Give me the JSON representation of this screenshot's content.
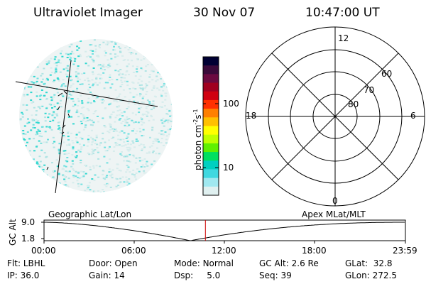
{
  "header": {
    "title": "Ultraviolet Imager",
    "date": "30 Nov 07",
    "time": "10:47:00 UT"
  },
  "colorbar": {
    "label": "photon cm",
    "label_exp1": "-2",
    "label_mid": "s",
    "label_exp2": "-1",
    "ticks": [
      "100",
      "10"
    ],
    "colors": [
      "#000033",
      "#3a0a3a",
      "#6b0a40",
      "#a00020",
      "#d00010",
      "#ff3000",
      "#ff8000",
      "#ffc000",
      "#ffff00",
      "#c0ff00",
      "#60f000",
      "#00e060",
      "#00d0c0",
      "#40d8e0",
      "#a0e8f0",
      "#e0f0f0"
    ]
  },
  "polar_plot": {
    "mlt_labels": {
      "top": "12",
      "bottom": "0",
      "left": "18",
      "right": "6"
    },
    "mlat_labels": [
      "60",
      "70",
      "80"
    ]
  },
  "timeline": {
    "left_label": "Geographic Lat/Lon",
    "right_label": "Apex  MLat/MLT",
    "axis_title": "GC Alt",
    "y_ticks": [
      "9.0",
      "1.8"
    ],
    "x_ticks": [
      "00:00",
      "06:00",
      "12:00",
      "18:00",
      "23:59"
    ],
    "current_time_fraction": 0.4465
  },
  "status": {
    "flt_label": "Flt:",
    "flt_value": "LBHL",
    "ip_label": "IP:",
    "ip_value": "36.0",
    "door_label": "Door:",
    "door_value": "Open",
    "gain_label": "Gain:",
    "gain_value": "14",
    "mode_label": "Mode:",
    "mode_value": "Normal",
    "dsp_label": "Dsp:",
    "dsp_value": "5.0",
    "gcalt_label": "GC Alt:",
    "gcalt_value": "2.6 Re",
    "seq_label": "Seq:",
    "seq_value": "39",
    "glat_label": "GLat:",
    "glat_value": "32.8",
    "glon_label": "GLon:",
    "glon_value": "272.5"
  }
}
